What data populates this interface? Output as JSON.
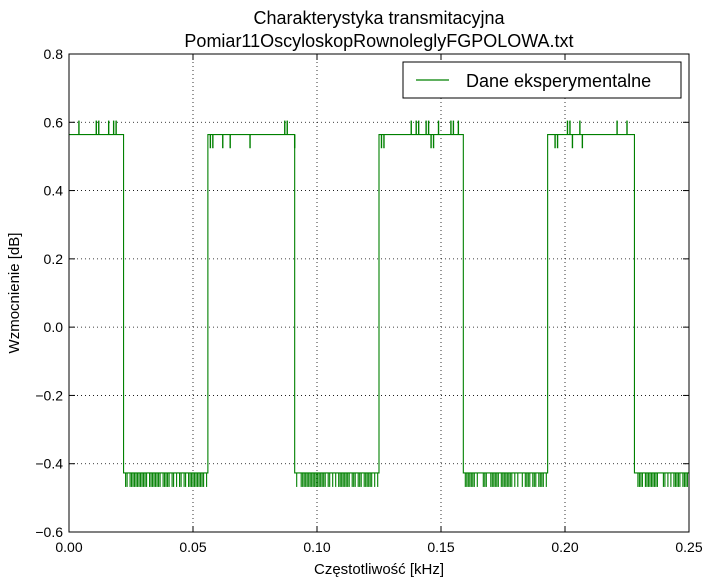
{
  "chart_data": {
    "type": "line",
    "title_line1": "Charakterystyka transmitacyjna",
    "title_line2": "Pomiar11OscyloskopRownoleglyFGPOLOWA.txt",
    "xlabel": "Częstotliwość [kHz]",
    "ylabel": "Wzmocnienie [dB]",
    "xlim": [
      0.0,
      0.25
    ],
    "ylim": [
      -0.6,
      0.8
    ],
    "xticks": [
      "0.00",
      "0.05",
      "0.10",
      "0.15",
      "0.20",
      "0.25"
    ],
    "yticks": [
      "−0.6",
      "−0.4",
      "−0.2",
      "0.0",
      "0.2",
      "0.4",
      "0.6",
      "0.8"
    ],
    "grid": true,
    "legend_position": "top-right",
    "line_color": "#008000",
    "series": [
      {
        "name": "Dane eksperymentalne",
        "baseline_high": 0.564,
        "baseline_low": -0.427,
        "spike_high": 0.605,
        "spike_low": -0.468,
        "segments": [
          {
            "level": "high",
            "x0": 0.0,
            "x1": 0.022
          },
          {
            "level": "low",
            "x0": 0.022,
            "x1": 0.056
          },
          {
            "level": "high",
            "x0": 0.056,
            "x1": 0.091
          },
          {
            "level": "low",
            "x0": 0.091,
            "x1": 0.125
          },
          {
            "level": "high",
            "x0": 0.125,
            "x1": 0.159
          },
          {
            "level": "low",
            "x0": 0.159,
            "x1": 0.193
          },
          {
            "level": "high",
            "x0": 0.193,
            "x1": 0.228
          },
          {
            "level": "low",
            "x0": 0.228,
            "x1": 0.25
          }
        ],
        "up_spikes_x": [
          0.004,
          0.011,
          0.012,
          0.016,
          0.018,
          0.019,
          0.087,
          0.088,
          0.138,
          0.14,
          0.141,
          0.144,
          0.145,
          0.149,
          0.154,
          0.155,
          0.157,
          0.201,
          0.202,
          0.206,
          0.221,
          0.225
        ],
        "down_spikes_x": [
          0.057,
          0.058,
          0.062,
          0.065,
          0.073,
          0.091,
          0.126,
          0.127,
          0.146,
          0.147,
          0.196,
          0.197,
          0.203,
          0.207
        ]
      }
    ]
  }
}
